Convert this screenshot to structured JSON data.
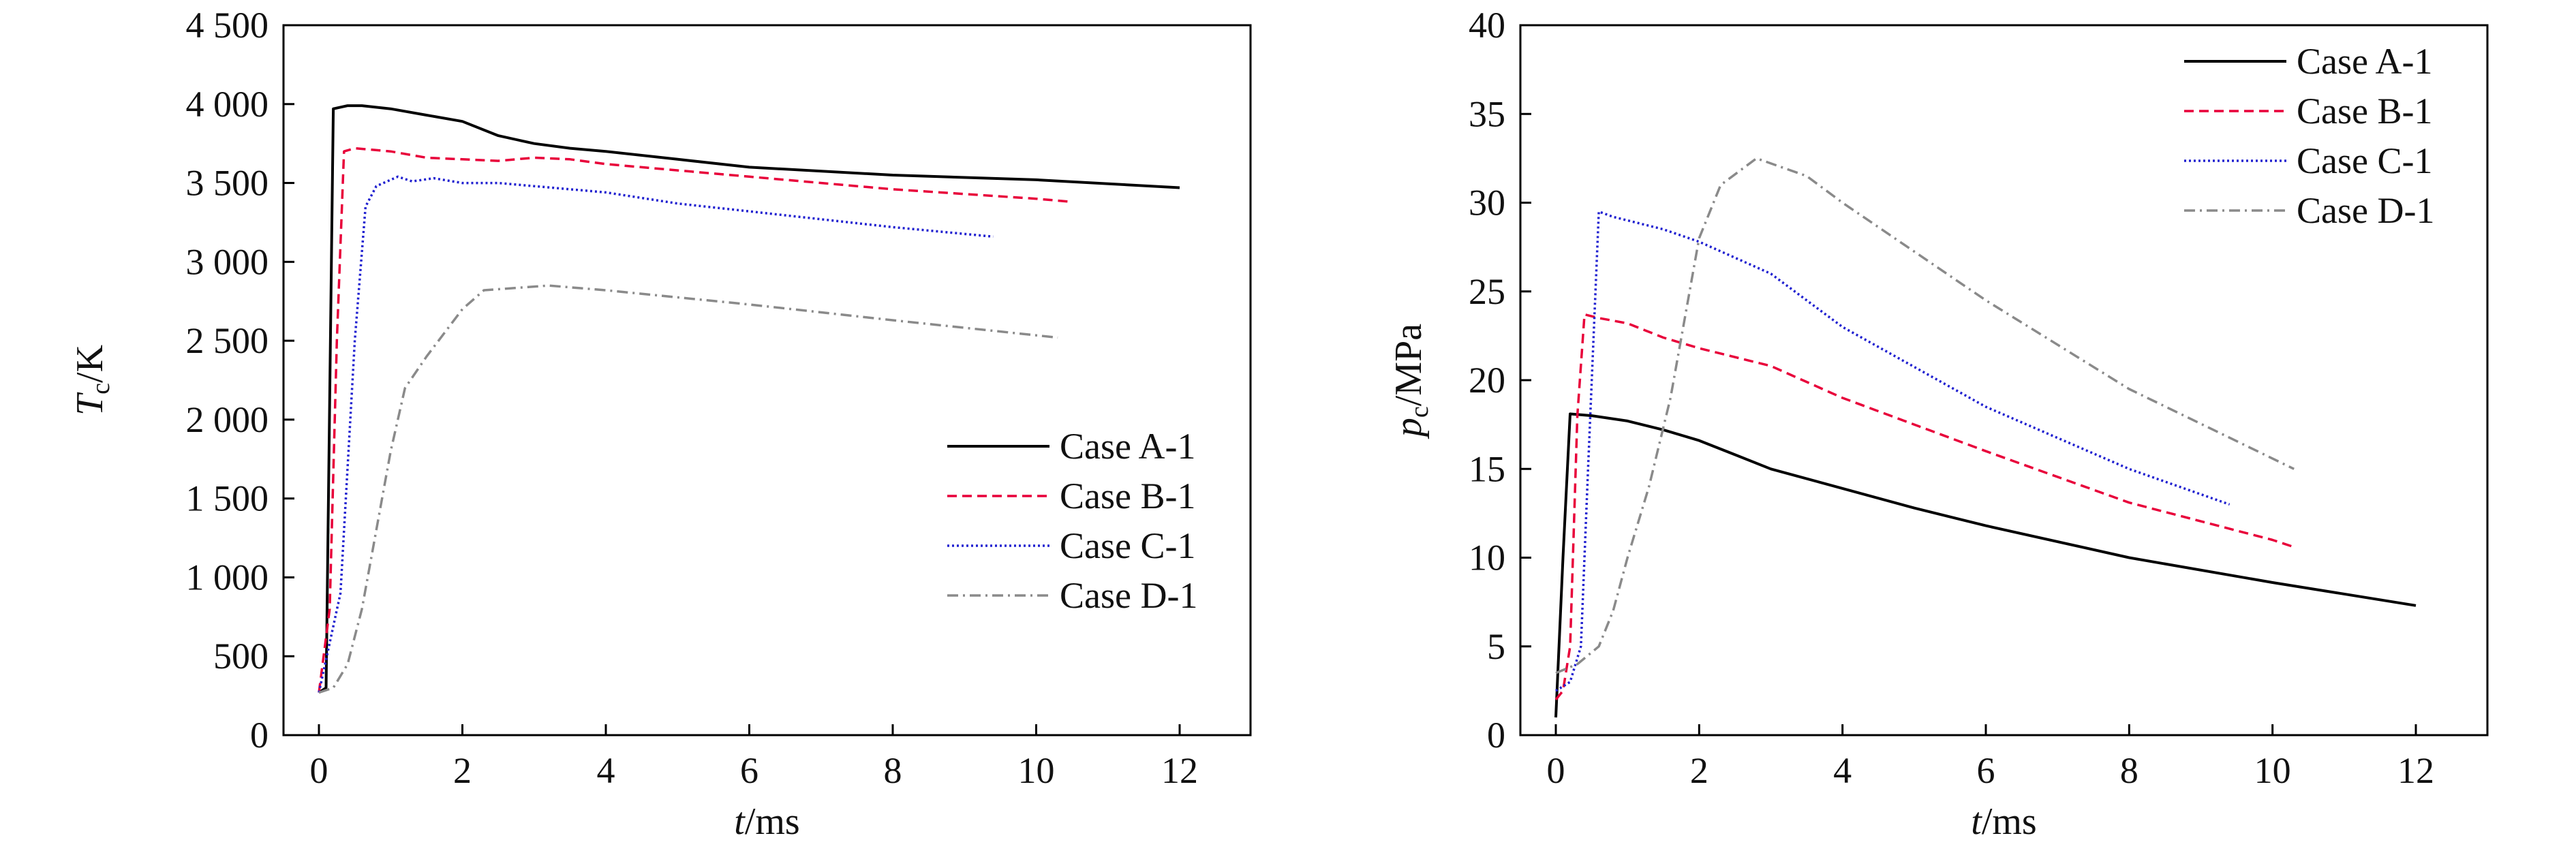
{
  "chart_data": [
    {
      "type": "line",
      "xlabel": {
        "var": "t",
        "unit": "/ms"
      },
      "ylabel": {
        "var": "T",
        "sub": "c",
        "unit": "/K"
      },
      "xlim": [
        -0.5,
        13.5
      ],
      "ylim": [
        0,
        4500
      ],
      "xticks": [
        0,
        2,
        4,
        6,
        8,
        10,
        12
      ],
      "xtick_labels": [
        "0",
        "2",
        "4",
        "6",
        "8",
        "10",
        "12"
      ],
      "yticks": [
        0,
        500,
        1000,
        1500,
        2000,
        2500,
        3000,
        3500,
        4000,
        4500
      ],
      "ytick_labels": [
        "0",
        "500",
        "1 000",
        "1 500",
        "2 000",
        "2 500",
        "3 000",
        "3 500",
        "4 000",
        "4 500"
      ],
      "grid": false,
      "legend_position": "lower-right",
      "series": [
        {
          "name": "Case A-1",
          "color": "#000000",
          "dash": "solid",
          "x": [
            0,
            0.1,
            0.2,
            0.4,
            0.6,
            1,
            1.5,
            2,
            2.5,
            3,
            3.5,
            4,
            5,
            6,
            8,
            10,
            12
          ],
          "y": [
            270,
            300,
            3970,
            3990,
            3990,
            3970,
            3930,
            3890,
            3800,
            3750,
            3720,
            3700,
            3650,
            3600,
            3550,
            3520,
            3470
          ]
        },
        {
          "name": "Case B-1",
          "color": "#e8003a",
          "dash": "dashed",
          "x": [
            0,
            0.15,
            0.25,
            0.35,
            0.5,
            1,
            1.5,
            2,
            2.5,
            3,
            3.5,
            4,
            6,
            8,
            10,
            10.5
          ],
          "y": [
            270,
            800,
            2500,
            3700,
            3720,
            3700,
            3660,
            3650,
            3640,
            3660,
            3650,
            3620,
            3540,
            3460,
            3400,
            3380
          ]
        },
        {
          "name": "Case C-1",
          "color": "#2020d0",
          "dash": "dotted",
          "x": [
            0,
            0.3,
            0.5,
            0.65,
            0.8,
            1.1,
            1.3,
            1.6,
            2,
            2.5,
            3,
            4,
            5,
            6,
            8,
            9.4
          ],
          "y": [
            270,
            900,
            2500,
            3350,
            3480,
            3540,
            3510,
            3530,
            3500,
            3500,
            3480,
            3440,
            3370,
            3320,
            3220,
            3160
          ]
        },
        {
          "name": "Case D-1",
          "color": "#8a8a8a",
          "dash": "dashdot",
          "x": [
            0,
            0.2,
            0.4,
            0.6,
            0.8,
            1,
            1.2,
            1.5,
            2,
            2.3,
            2.6,
            3.2,
            4,
            6,
            8,
            10.3
          ],
          "y": [
            270,
            300,
            450,
            800,
            1300,
            1800,
            2200,
            2400,
            2700,
            2820,
            2830,
            2850,
            2820,
            2730,
            2630,
            2520
          ]
        }
      ]
    },
    {
      "type": "line",
      "xlabel": {
        "var": "t",
        "unit": "/ms"
      },
      "ylabel": {
        "var": "p",
        "sub": "c",
        "unit": "/MPa"
      },
      "xlim": [
        -0.5,
        13.5
      ],
      "ylim": [
        0,
        40
      ],
      "xticks": [
        0,
        2,
        4,
        6,
        8,
        10,
        12
      ],
      "xtick_labels": [
        "0",
        "2",
        "4",
        "6",
        "8",
        "10",
        "12"
      ],
      "yticks": [
        0,
        5,
        10,
        15,
        20,
        25,
        30,
        35,
        40
      ],
      "ytick_labels": [
        "0",
        "5",
        "10",
        "15",
        "20",
        "25",
        "30",
        "35",
        "40"
      ],
      "grid": false,
      "legend_position": "top-right",
      "series": [
        {
          "name": "Case A-1",
          "color": "#000000",
          "dash": "solid",
          "x": [
            0,
            0.1,
            0.2,
            0.5,
            1,
            1.5,
            2,
            2.5,
            3,
            4,
            5,
            6,
            8,
            10,
            12
          ],
          "y": [
            1,
            10,
            18.1,
            18,
            17.7,
            17.2,
            16.6,
            15.8,
            15,
            13.9,
            12.8,
            11.8,
            10,
            8.6,
            7.3
          ]
        },
        {
          "name": "Case B-1",
          "color": "#e8003a",
          "dash": "dashed",
          "x": [
            0,
            0.1,
            0.2,
            0.3,
            0.4,
            0.6,
            1,
            1.5,
            2,
            3,
            4,
            6,
            8,
            10,
            10.3
          ],
          "y": [
            2,
            2.5,
            5,
            18,
            23.7,
            23.5,
            23.2,
            22.4,
            21.8,
            20.8,
            19,
            16,
            13.1,
            11,
            10.6
          ]
        },
        {
          "name": "Case C-1",
          "color": "#2020d0",
          "dash": "dotted",
          "x": [
            0,
            0.2,
            0.35,
            0.45,
            0.6,
            0.8,
            1,
            1.5,
            2,
            3,
            4,
            6,
            8,
            9.4
          ],
          "y": [
            2.5,
            3,
            5,
            15,
            29.5,
            29.2,
            29,
            28.5,
            27.8,
            26,
            23,
            18.5,
            15,
            13
          ]
        },
        {
          "name": "Case D-1",
          "color": "#8a8a8a",
          "dash": "dashdot",
          "x": [
            0,
            0.3,
            0.6,
            0.8,
            1,
            1.3,
            1.6,
            2,
            2.3,
            2.8,
            3.5,
            4,
            6,
            8,
            10.3
          ],
          "y": [
            3.5,
            4,
            5,
            7,
            10,
            14,
            19,
            28,
            31,
            32.5,
            31.5,
            30,
            24.5,
            19.5,
            15
          ]
        }
      ]
    }
  ]
}
